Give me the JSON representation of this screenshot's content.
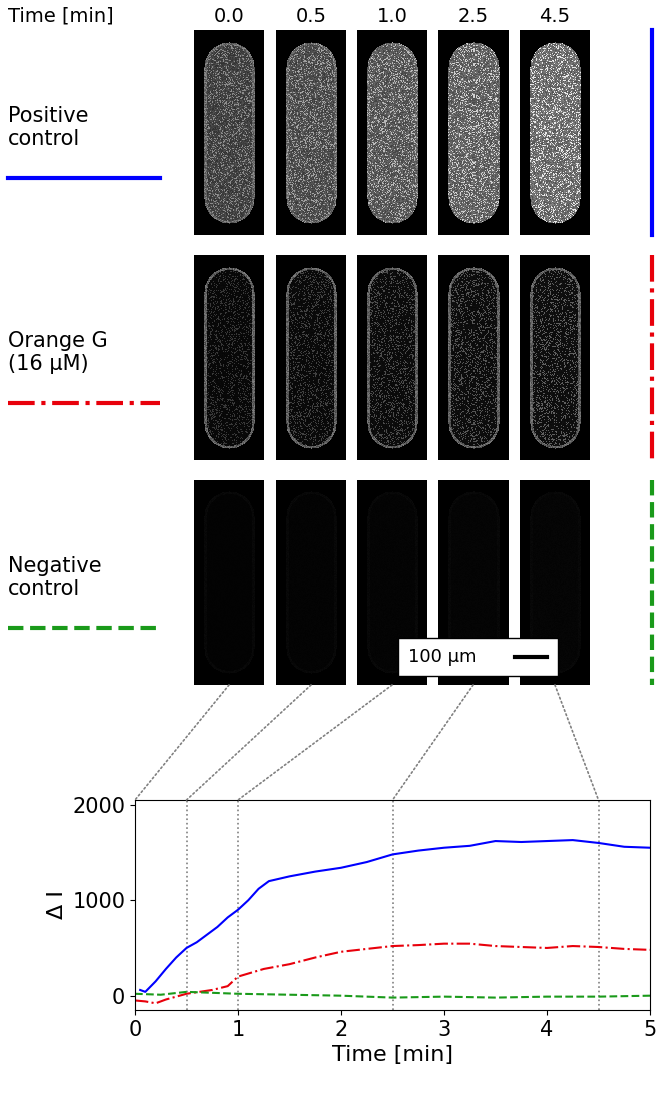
{
  "panel": {
    "time_label": "Time [min]",
    "image_times": [
      0.0,
      0.5,
      1.0,
      2.5,
      4.5
    ],
    "scale_bar": "100 μm"
  },
  "chart_data": {
    "type": "line",
    "x_label": "Time [min]",
    "y_label": "Δ I",
    "xlim": [
      0,
      5
    ],
    "xticks": [
      0,
      1,
      2,
      3,
      4,
      5
    ],
    "ylim": [
      -150,
      2050
    ],
    "yticks": [
      0,
      1000,
      2000
    ],
    "series": [
      {
        "name": "Positive\ncontrol",
        "color": "#0000ff",
        "line_style": "solid",
        "x": [
          0.05,
          0.1,
          0.2,
          0.3,
          0.4,
          0.5,
          0.6,
          0.7,
          0.8,
          0.9,
          1.0,
          1.1,
          1.2,
          1.3,
          1.5,
          1.75,
          2.0,
          2.25,
          2.5,
          2.75,
          3.0,
          3.25,
          3.5,
          3.75,
          4.0,
          4.25,
          4.5,
          4.75,
          5.0
        ],
        "values": [
          60,
          40,
          150,
          280,
          400,
          500,
          560,
          640,
          720,
          820,
          900,
          1000,
          1120,
          1200,
          1250,
          1300,
          1340,
          1400,
          1480,
          1520,
          1550,
          1570,
          1620,
          1610,
          1620,
          1630,
          1600,
          1560,
          1550
        ]
      },
      {
        "name": "Orange G\n(16 μM)",
        "color": "#e8000b",
        "line_style": "dash_dot",
        "x": [
          0.0,
          0.1,
          0.2,
          0.3,
          0.5,
          0.75,
          0.9,
          1.0,
          1.25,
          1.5,
          1.75,
          2.0,
          2.25,
          2.5,
          2.75,
          3.0,
          3.25,
          3.5,
          3.75,
          4.0,
          4.25,
          4.5,
          4.75,
          5.0
        ],
        "values": [
          -50,
          -60,
          -80,
          -40,
          20,
          60,
          100,
          200,
          280,
          330,
          400,
          460,
          490,
          520,
          530,
          545,
          545,
          520,
          510,
          500,
          520,
          510,
          490,
          480
        ]
      },
      {
        "name": "Negative\ncontrol",
        "color": "#1a9a1a",
        "line_style": "dashed",
        "x": [
          0.0,
          0.25,
          0.5,
          1.0,
          1.5,
          2.0,
          2.5,
          3.0,
          3.5,
          4.0,
          4.5,
          5.0
        ],
        "values": [
          20,
          10,
          40,
          20,
          10,
          0,
          -20,
          -10,
          -20,
          -10,
          -10,
          0
        ]
      }
    ]
  }
}
